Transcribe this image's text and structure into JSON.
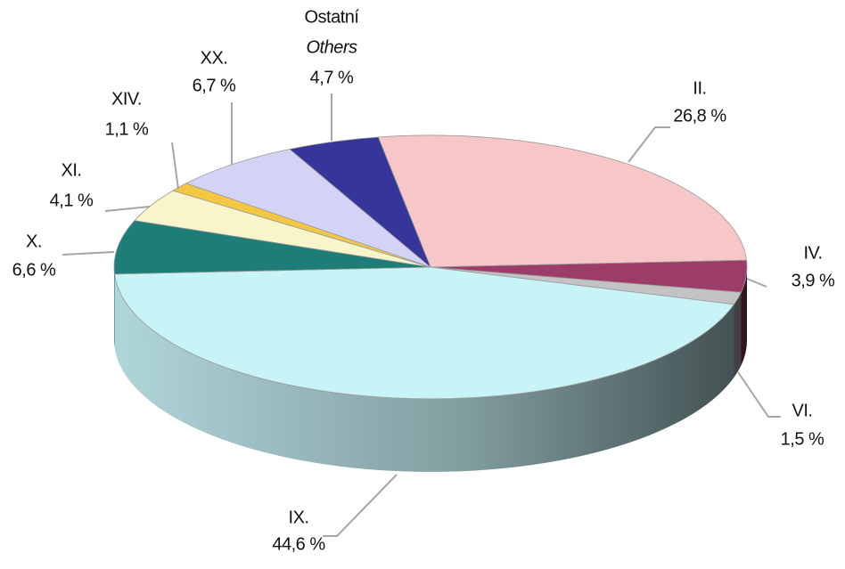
{
  "chart_data": {
    "type": "pie3d",
    "categories": [
      "II.",
      "IV.",
      "VI.",
      "IX.",
      "X.",
      "XI.",
      "XIV.",
      "XX.",
      "Ostatní"
    ],
    "others_label": "Others",
    "values": [
      26.8,
      3.9,
      1.5,
      44.6,
      6.6,
      4.1,
      1.1,
      6.7,
      4.7
    ],
    "value_labels": [
      "26,8 %",
      "3,9 %",
      "1,5 %",
      "44,6 %",
      "6,6 %",
      "4,1 %",
      "1,1 %",
      "6,7 %",
      "4,7 %"
    ],
    "colors": [
      "#f7c7c8",
      "#9c3c68",
      "#c3c3c3",
      "#c8f3f7",
      "#1f7d78",
      "#f7f5c9",
      "#f4c742",
      "#d3d3f6",
      "#35359a"
    ]
  }
}
